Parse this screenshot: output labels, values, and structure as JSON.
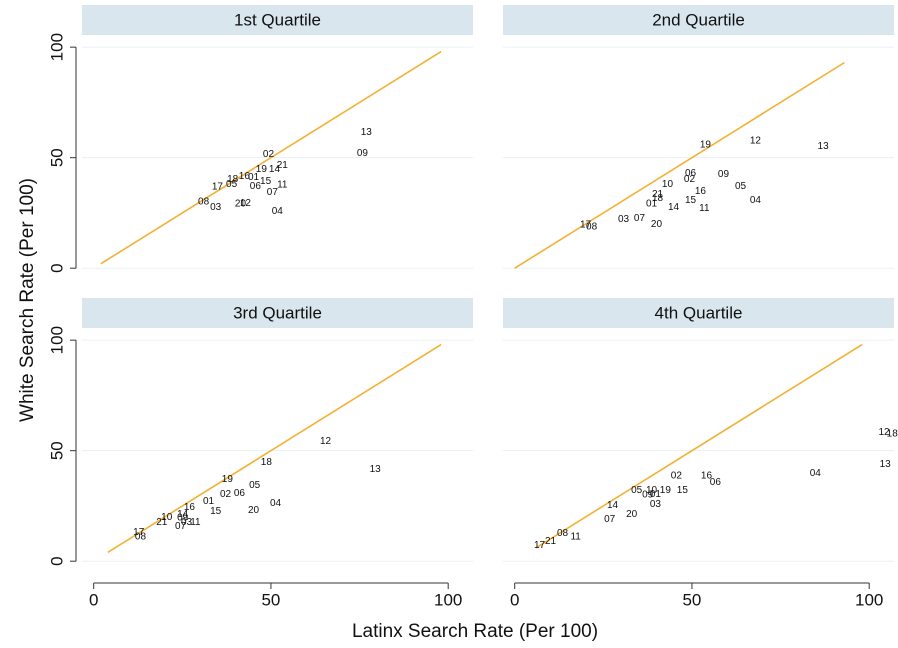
{
  "axis_labels": {
    "x": "Latinx Search Rate (Per 100)",
    "y": "White Search Rate (Per 100)"
  },
  "chart_data": [
    {
      "type": "scatter",
      "title": "1st Quartile",
      "xlim": [
        -3.3,
        107
      ],
      "ylim": [
        -7.6,
        105.5
      ],
      "xticks": [
        0,
        50,
        100
      ],
      "yticks": [
        0,
        50,
        100
      ],
      "grid": true,
      "show_xtick_labels": false,
      "show_ytick_labels": true,
      "ref_line": {
        "x": [
          2,
          98
        ],
        "y": [
          2,
          98
        ],
        "color": "#f2b134"
      },
      "labels": [
        "13",
        "09",
        "02",
        "21",
        "14",
        "19",
        "16",
        "18",
        "01",
        "05",
        "17",
        "15",
        "06",
        "11",
        "07",
        "08",
        "03",
        "20",
        "12",
        "04"
      ],
      "x": [
        76.9,
        75.8,
        49.3,
        53.2,
        51.0,
        47.3,
        42.5,
        39.2,
        45.1,
        38.9,
        34.9,
        48.5,
        45.6,
        53.2,
        50.4,
        31.0,
        34.4,
        41.4,
        42.8,
        51.8
      ],
      "y": [
        61.5,
        52.0,
        51.6,
        46.6,
        44.8,
        44.8,
        41.6,
        40.3,
        41.2,
        38.0,
        36.7,
        39.4,
        37.1,
        37.6,
        34.4,
        29.9,
        27.6,
        29.0,
        29.4,
        25.8
      ]
    },
    {
      "type": "scatter",
      "title": "2nd Quartile",
      "xlim": [
        -3.3,
        107
      ],
      "ylim": [
        -7.6,
        105.5
      ],
      "xticks": [
        0,
        50,
        100
      ],
      "yticks": [
        0,
        50,
        100
      ],
      "grid": true,
      "show_xtick_labels": false,
      "show_ytick_labels": false,
      "ref_line": {
        "x": [
          0,
          93
        ],
        "y": [
          0,
          93
        ],
        "color": "#f2b134"
      },
      "labels": [
        "19",
        "12",
        "13",
        "06",
        "02",
        "09",
        "05",
        "04",
        "10",
        "16",
        "21",
        "18",
        "15",
        "01",
        "14",
        "11",
        "03",
        "07",
        "20",
        "17",
        "08"
      ],
      "x": [
        53.8,
        67.9,
        87.0,
        49.6,
        49.3,
        58.9,
        63.7,
        67.9,
        43.1,
        52.4,
        40.3,
        40.3,
        49.6,
        38.6,
        44.8,
        53.5,
        30.7,
        35.2,
        40.0,
        20.0,
        21.7
      ],
      "y": [
        55.7,
        57.5,
        55.2,
        43.0,
        40.3,
        42.5,
        37.1,
        30.8,
        38.0,
        34.8,
        33.5,
        31.7,
        30.8,
        29.0,
        27.6,
        27.1,
        22.2,
        22.6,
        19.9,
        19.5,
        18.6
      ]
    },
    {
      "type": "scatter",
      "title": "3rd Quartile",
      "xlim": [
        -3.3,
        107
      ],
      "ylim": [
        -7.6,
        105.5
      ],
      "xticks": [
        0,
        50,
        100
      ],
      "yticks": [
        0,
        50,
        100
      ],
      "grid": true,
      "show_xtick_labels": true,
      "show_ytick_labels": true,
      "ref_line": {
        "x": [
          4,
          98
        ],
        "y": [
          4,
          98
        ],
        "color": "#f2b134"
      },
      "labels": [
        "12",
        "13",
        "18",
        "19",
        "05",
        "02",
        "06",
        "01",
        "04",
        "20",
        "16",
        "15",
        "10",
        "14",
        "09",
        "21",
        "03",
        "11",
        "07",
        "17",
        "08"
      ],
      "x": [
        65.4,
        79.4,
        48.7,
        37.7,
        45.4,
        37.2,
        41.1,
        32.4,
        51.3,
        45.1,
        27.0,
        34.4,
        20.6,
        25.1,
        25.1,
        19.2,
        26.2,
        28.7,
        24.5,
        12.7,
        13.2
      ],
      "y": [
        54.3,
        41.6,
        44.8,
        37.1,
        34.4,
        30.3,
        30.8,
        27.1,
        26.2,
        23.1,
        24.4,
        22.6,
        19.9,
        21.3,
        19.5,
        17.6,
        17.6,
        17.6,
        15.8,
        13.1,
        10.9
      ]
    },
    {
      "type": "scatter",
      "title": "4th Quartile",
      "xlim": [
        -3.3,
        107
      ],
      "ylim": [
        -7.6,
        105.5
      ],
      "xticks": [
        0,
        50,
        100
      ],
      "yticks": [
        0,
        50,
        100
      ],
      "grid": true,
      "show_xtick_labels": true,
      "show_ytick_labels": false,
      "ref_line": {
        "x": [
          6,
          98
        ],
        "y": [
          6,
          98
        ],
        "color": "#f2b134"
      },
      "labels": [
        "12",
        "18",
        "13",
        "04",
        "16",
        "06",
        "02",
        "05",
        "10",
        "19",
        "15",
        "09",
        "01",
        "03",
        "14",
        "20",
        "07",
        "08",
        "21",
        "11",
        "17"
      ],
      "x": [
        104.2,
        106.5,
        104.5,
        84.8,
        54.1,
        56.6,
        45.6,
        34.4,
        38.6,
        42.5,
        47.3,
        37.5,
        39.7,
        39.7,
        27.6,
        33.0,
        26.8,
        13.5,
        10.1,
        17.2,
        7.0
      ],
      "y": [
        58.4,
        57.5,
        43.9,
        39.8,
        38.5,
        35.7,
        38.5,
        32.1,
        32.1,
        32.1,
        32.1,
        29.9,
        30.3,
        25.8,
        25.3,
        21.3,
        19.0,
        12.7,
        9.0,
        10.9,
        7.2
      ]
    }
  ]
}
